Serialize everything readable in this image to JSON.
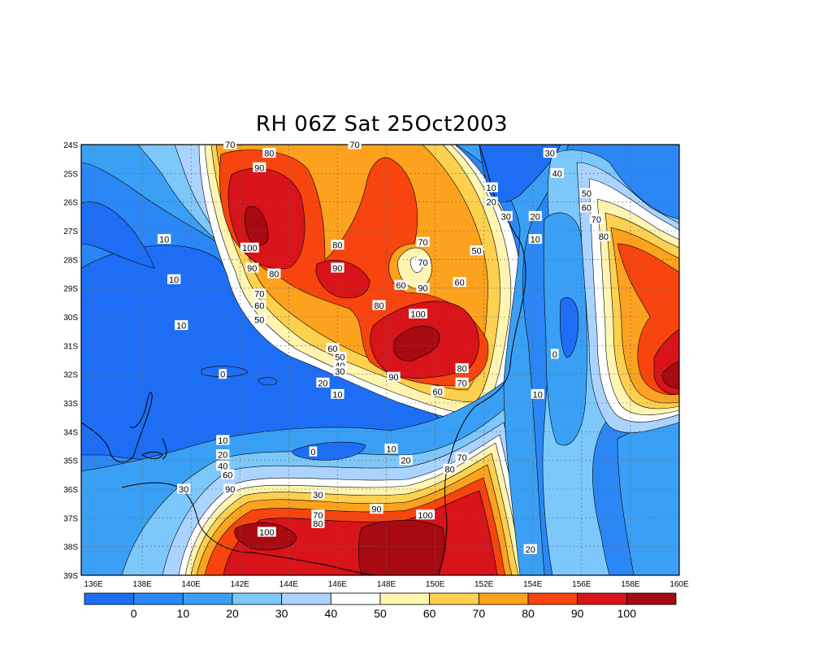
{
  "title": "RH 06Z Sat 25Oct2003",
  "map": {
    "lon_labels": [
      "136E",
      "138E",
      "140E",
      "142E",
      "144E",
      "146E",
      "148E",
      "150E",
      "152E",
      "154E",
      "156E",
      "158E",
      "160E"
    ],
    "lat_labels": [
      "24S",
      "25S",
      "26S",
      "27S",
      "28S",
      "29S",
      "30S",
      "31S",
      "32S",
      "33S",
      "34S",
      "35S",
      "36S",
      "37S",
      "38S",
      "39S"
    ],
    "lon_range": [
      135.5,
      160
    ],
    "lat_range": [
      -39,
      -24
    ],
    "grid": "dotted",
    "contour_labels": [
      {
        "text": "70",
        "lon": 141.6,
        "lat": -24.0
      },
      {
        "text": "70",
        "lon": 146.7,
        "lat": -24.0
      },
      {
        "text": "80",
        "lon": 143.2,
        "lat": -24.3
      },
      {
        "text": "90",
        "lon": 142.8,
        "lat": -24.8
      },
      {
        "text": "30",
        "lon": 154.7,
        "lat": -24.3
      },
      {
        "text": "40",
        "lon": 155.0,
        "lat": -25.0
      },
      {
        "text": "10",
        "lon": 152.3,
        "lat": -25.5
      },
      {
        "text": "20",
        "lon": 152.3,
        "lat": -26.0
      },
      {
        "text": "30",
        "lon": 152.9,
        "lat": -26.5
      },
      {
        "text": "50",
        "lon": 156.2,
        "lat": -25.7
      },
      {
        "text": "60",
        "lon": 156.2,
        "lat": -26.2
      },
      {
        "text": "70",
        "lon": 156.6,
        "lat": -26.6
      },
      {
        "text": "80",
        "lon": 156.9,
        "lat": -27.2
      },
      {
        "text": "20",
        "lon": 154.1,
        "lat": -26.5
      },
      {
        "text": "10",
        "lon": 154.1,
        "lat": -27.3
      },
      {
        "text": "10",
        "lon": 138.9,
        "lat": -27.3
      },
      {
        "text": "100",
        "lon": 142.4,
        "lat": -27.6
      },
      {
        "text": "80",
        "lon": 146.0,
        "lat": -27.5
      },
      {
        "text": "70",
        "lon": 149.5,
        "lat": -27.4
      },
      {
        "text": "70",
        "lon": 149.5,
        "lat": -28.1
      },
      {
        "text": "50",
        "lon": 151.7,
        "lat": -27.7
      },
      {
        "text": "90",
        "lon": 142.5,
        "lat": -28.3
      },
      {
        "text": "80",
        "lon": 143.4,
        "lat": -28.5
      },
      {
        "text": "90",
        "lon": 146.0,
        "lat": -28.3
      },
      {
        "text": "10",
        "lon": 139.3,
        "lat": -28.7
      },
      {
        "text": "60",
        "lon": 148.6,
        "lat": -28.9
      },
      {
        "text": "90",
        "lon": 149.5,
        "lat": -29.0
      },
      {
        "text": "60",
        "lon": 151.0,
        "lat": -28.8
      },
      {
        "text": "70",
        "lon": 142.8,
        "lat": -29.2
      },
      {
        "text": "60",
        "lon": 142.8,
        "lat": -29.6
      },
      {
        "text": "80",
        "lon": 147.7,
        "lat": -29.6
      },
      {
        "text": "50",
        "lon": 142.8,
        "lat": -30.1
      },
      {
        "text": "100",
        "lon": 149.3,
        "lat": -29.9
      },
      {
        "text": "10",
        "lon": 139.6,
        "lat": -30.3
      },
      {
        "text": "60",
        "lon": 145.8,
        "lat": -31.1
      },
      {
        "text": "50",
        "lon": 146.1,
        "lat": -31.4
      },
      {
        "text": "40",
        "lon": 146.1,
        "lat": -31.7
      },
      {
        "text": "30",
        "lon": 146.1,
        "lat": -31.9
      },
      {
        "text": "0",
        "lon": 141.3,
        "lat": -32.0
      },
      {
        "text": "0",
        "lon": 154.9,
        "lat": -31.3
      },
      {
        "text": "80",
        "lon": 151.1,
        "lat": -31.8
      },
      {
        "text": "90",
        "lon": 148.3,
        "lat": -32.1
      },
      {
        "text": "20",
        "lon": 145.4,
        "lat": -32.3
      },
      {
        "text": "70",
        "lon": 151.1,
        "lat": -32.3
      },
      {
        "text": "10",
        "lon": 146.0,
        "lat": -32.7
      },
      {
        "text": "60",
        "lon": 150.1,
        "lat": -32.6
      },
      {
        "text": "10",
        "lon": 154.2,
        "lat": -32.7
      },
      {
        "text": "10",
        "lon": 141.3,
        "lat": -34.3
      },
      {
        "text": "20",
        "lon": 141.3,
        "lat": -34.8
      },
      {
        "text": "0",
        "lon": 145.0,
        "lat": -34.7
      },
      {
        "text": "10",
        "lon": 148.2,
        "lat": -34.6
      },
      {
        "text": "20",
        "lon": 148.8,
        "lat": -35.0
      },
      {
        "text": "70",
        "lon": 151.1,
        "lat": -34.9
      },
      {
        "text": "40",
        "lon": 141.3,
        "lat": -35.2
      },
      {
        "text": "60",
        "lon": 141.5,
        "lat": -35.5
      },
      {
        "text": "80",
        "lon": 150.6,
        "lat": -35.3
      },
      {
        "text": "30",
        "lon": 139.7,
        "lat": -36.0
      },
      {
        "text": "90",
        "lon": 141.6,
        "lat": -36.0
      },
      {
        "text": "30",
        "lon": 145.2,
        "lat": -36.2
      },
      {
        "text": "90",
        "lon": 147.6,
        "lat": -36.7
      },
      {
        "text": "70",
        "lon": 145.2,
        "lat": -36.9
      },
      {
        "text": "100",
        "lon": 149.6,
        "lat": -36.9
      },
      {
        "text": "80",
        "lon": 145.2,
        "lat": -37.2
      },
      {
        "text": "100",
        "lon": 143.1,
        "lat": -37.5
      },
      {
        "text": "20",
        "lon": 153.9,
        "lat": -38.1
      }
    ]
  },
  "colorbar": {
    "labels": [
      "0",
      "10",
      "20",
      "30",
      "40",
      "50",
      "60",
      "70",
      "80",
      "90",
      "100"
    ],
    "colors": [
      "#1e6ef5",
      "#2b87f5",
      "#3aa0f5",
      "#7cc8fb",
      "#aad4ff",
      "#ffffff",
      "#fff5b0",
      "#fdd04f",
      "#fca21e",
      "#f8440f",
      "#d8131a",
      "#a80a12"
    ]
  }
}
